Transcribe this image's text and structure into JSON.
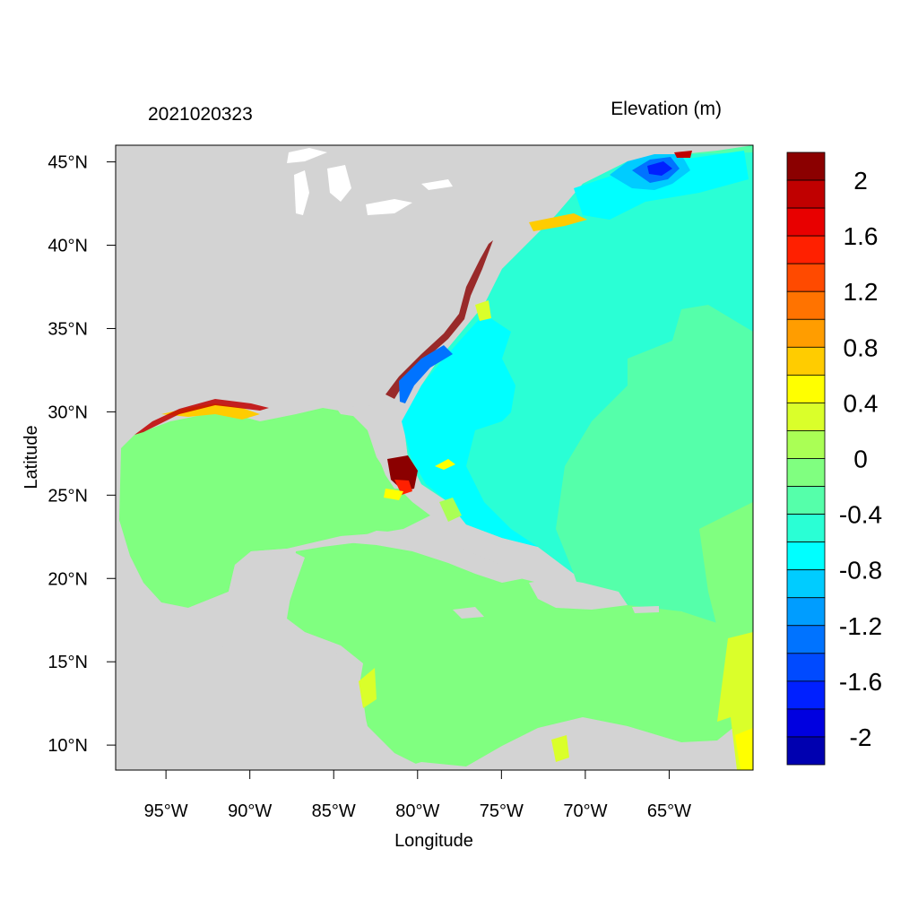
{
  "header": {
    "timestamp": "2021020323",
    "variable_title": "Elevation (m)"
  },
  "axes": {
    "xlabel": "Longitude",
    "ylabel": "Latitude",
    "x_ticks": [
      {
        "value": -95,
        "label": "95°W"
      },
      {
        "value": -90,
        "label": "90°W"
      },
      {
        "value": -85,
        "label": "85°W"
      },
      {
        "value": -80,
        "label": "80°W"
      },
      {
        "value": -75,
        "label": "75°W"
      },
      {
        "value": -70,
        "label": "70°W"
      },
      {
        "value": -65,
        "label": "65°W"
      }
    ],
    "y_ticks": [
      {
        "value": 45,
        "label": "45°N"
      },
      {
        "value": 40,
        "label": "40°N"
      },
      {
        "value": 35,
        "label": "35°N"
      },
      {
        "value": 30,
        "label": "30°N"
      },
      {
        "value": 25,
        "label": "25°N"
      },
      {
        "value": 20,
        "label": "20°N"
      },
      {
        "value": 15,
        "label": "15°N"
      },
      {
        "value": 10,
        "label": "10°N"
      }
    ],
    "lon_range": [
      -98,
      -60
    ],
    "lat_range": [
      8.5,
      46
    ]
  },
  "colorbar": {
    "colors_top_to_bottom": [
      "#8b0000",
      "#c00000",
      "#e80000",
      "#ff2000",
      "#ff4a00",
      "#ff7300",
      "#ff9d00",
      "#ffcc00",
      "#ffff00",
      "#daff2a",
      "#aaff55",
      "#80ff80",
      "#55ffaa",
      "#2affd5",
      "#00ffff",
      "#00ccff",
      "#009dff",
      "#0073ff",
      "#004aff",
      "#0020ff",
      "#0000e0",
      "#0000b0"
    ],
    "labels": [
      "2",
      "1.6",
      "1.2",
      "0.8",
      "0.4",
      "0",
      "-0.4",
      "-0.8",
      "-1.2",
      "-1.6",
      "-2"
    ]
  },
  "map_colors": {
    "land": "#d3d3d3",
    "lakes": "#ffffff",
    "gulf_caribbean": "#80ff80",
    "atlantic_open": "#55ffaa",
    "atlantic_inner": "#2affd5",
    "coastal_cyan": "#00ffff",
    "low_blue": "#0073ff",
    "surge_high": "#8b0000"
  }
}
